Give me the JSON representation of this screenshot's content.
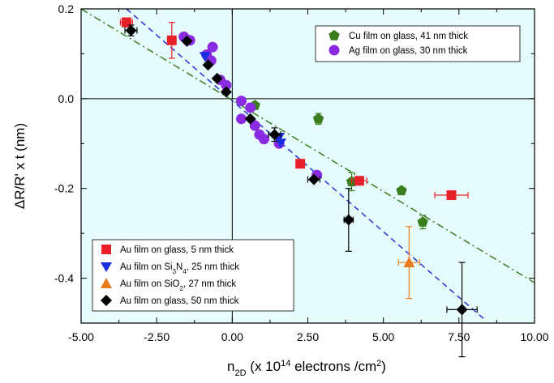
{
  "chart_data": {
    "type": "scatter",
    "xlabel": "n2D (x 10^14 electrons /cm^2)",
    "ylabel": "ΔR/R' x t (nm)",
    "xlim": [
      -5.0,
      10.0
    ],
    "ylim": [
      -0.5,
      0.2
    ],
    "x_ticks": [
      "-5.00",
      "-2.50",
      "0.00",
      "2.50",
      "5.00",
      "7.50",
      "10.00"
    ],
    "y_ticks": [
      "0.2",
      "0.0",
      "-0.2",
      "-0.4"
    ],
    "x_tick_values": [
      -5.0,
      -2.5,
      0.0,
      2.5,
      5.0,
      7.5,
      10.0
    ],
    "y_tick_values": [
      0.2,
      0.0,
      -0.2,
      -0.4
    ],
    "background": "#e6fbfb",
    "grid": false,
    "legend_top_right": {
      "position": "top-right",
      "entries": [
        {
          "label": "Cu film on glass, 41 nm thick",
          "series": "cu"
        },
        {
          "label": "Ag film on glass, 30 nm thick",
          "series": "ag"
        }
      ]
    },
    "legend_bottom_left": {
      "position": "bottom-left",
      "entries": [
        {
          "label": "Au film on glass, 5 nm thick",
          "series": "au5"
        },
        {
          "label": "Au film on Si3N4, 25 nm thick",
          "series": "ausin"
        },
        {
          "label": "Au film on SiO2, 27 nm thick",
          "series": "ausio"
        },
        {
          "label": "Au film on glass, 50 nm thick",
          "series": "au50"
        }
      ]
    },
    "series": [
      {
        "name": "Cu film on glass, 41 nm thick",
        "key": "cu",
        "marker": "pentagon",
        "color": "#3a7d1e",
        "points": [
          {
            "x": 0.75,
            "y": -0.015,
            "ey": 0
          },
          {
            "x": 2.85,
            "y": -0.045,
            "ey": 0.012
          },
          {
            "x": 3.95,
            "y": -0.185,
            "ey": 0.02
          },
          {
            "x": 5.6,
            "y": -0.205,
            "ey": 0
          },
          {
            "x": 6.3,
            "y": -0.275,
            "ey": 0.015
          }
        ]
      },
      {
        "name": "Ag film on glass, 30 nm thick",
        "key": "ag",
        "marker": "circle",
        "color": "#8a2be2",
        "points": [
          {
            "x": -1.6,
            "y": 0.138
          },
          {
            "x": -1.4,
            "y": 0.13
          },
          {
            "x": -0.65,
            "y": 0.115
          },
          {
            "x": -0.85,
            "y": 0.098
          },
          {
            "x": -0.7,
            "y": 0.085
          },
          {
            "x": -0.4,
            "y": 0.042
          },
          {
            "x": -0.2,
            "y": 0.03
          },
          {
            "x": 0.3,
            "y": -0.005
          },
          {
            "x": 0.6,
            "y": -0.02
          },
          {
            "x": 0.3,
            "y": -0.045
          },
          {
            "x": 0.75,
            "y": -0.06
          },
          {
            "x": 0.9,
            "y": -0.08
          },
          {
            "x": 1.05,
            "y": -0.09
          },
          {
            "x": 1.55,
            "y": -0.1
          },
          {
            "x": 2.8,
            "y": -0.17
          }
        ]
      },
      {
        "name": "Au film on glass, 5 nm thick",
        "key": "au5",
        "marker": "square",
        "color": "#e8202a",
        "points": [
          {
            "x": -3.5,
            "y": 0.17,
            "ey": 0.01,
            "ex": 0.2
          },
          {
            "x": -2.0,
            "y": 0.13,
            "ey": 0.04,
            "ex": 0
          },
          {
            "x": 2.25,
            "y": -0.145,
            "ey": 0,
            "ex": 0
          },
          {
            "x": 4.2,
            "y": -0.183,
            "ey": 0,
            "ex": 0.25
          },
          {
            "x": 7.25,
            "y": -0.215,
            "ey": 0,
            "ex": 0.55
          }
        ]
      },
      {
        "name": "Au film on Si3N4, 25 nm thick",
        "key": "ausin",
        "marker": "triangle-down",
        "color": "#1a2fe0",
        "points": [
          {
            "x": -0.9,
            "y": 0.095
          },
          {
            "x": 1.55,
            "y": -0.085
          },
          {
            "x": 1.6,
            "y": -0.098
          }
        ]
      },
      {
        "name": "Au film on SiO2, 27 nm thick",
        "key": "ausio",
        "marker": "triangle-up",
        "color": "#e87a1a",
        "points": [
          {
            "x": 5.85,
            "y": -0.365,
            "ey": 0.08,
            "ex": 0.35
          }
        ]
      },
      {
        "name": "Au film on glass, 50 nm thick",
        "key": "au50",
        "marker": "diamond",
        "color": "#000000",
        "points": [
          {
            "x": -3.35,
            "y": 0.152,
            "ey": 0.012,
            "ex": 0.2
          },
          {
            "x": -1.5,
            "y": 0.128,
            "ey": 0,
            "ex": 0
          },
          {
            "x": -0.8,
            "y": 0.075,
            "ey": 0,
            "ex": 0
          },
          {
            "x": -0.5,
            "y": 0.045,
            "ey": 0,
            "ex": 0
          },
          {
            "x": -0.2,
            "y": 0.015,
            "ey": 0,
            "ex": 0
          },
          {
            "x": 0.6,
            "y": -0.045,
            "ey": 0,
            "ex": 0
          },
          {
            "x": 1.4,
            "y": -0.08,
            "ey": 0.015,
            "ex": 0.2
          },
          {
            "x": 2.7,
            "y": -0.18,
            "ey": 0,
            "ex": 0.2
          },
          {
            "x": 3.85,
            "y": -0.27,
            "ey": 0.07,
            "ex": 0.15
          },
          {
            "x": 7.6,
            "y": -0.47,
            "ey": 0.105,
            "ex": 0.5
          }
        ]
      }
    ],
    "fit_lines": [
      {
        "key": "blue-dashed",
        "color": "#2233dd",
        "dash": "dashed",
        "x": [
          -3.5,
          8.4
        ],
        "y": [
          0.2,
          -0.495
        ]
      },
      {
        "key": "green-dashdot",
        "color": "#3a7d1e",
        "dash": "dash-dot",
        "x": [
          -5.0,
          10.0
        ],
        "y": [
          0.2,
          -0.41
        ]
      }
    ]
  }
}
